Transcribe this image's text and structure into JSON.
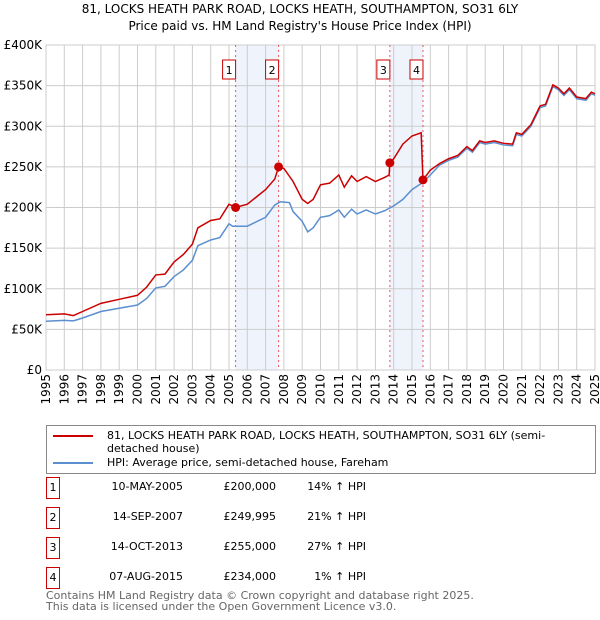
{
  "title": "81, LOCKS HEATH PARK ROAD, LOCKS HEATH, SOUTHAMPTON, SO31 6LY",
  "subtitle": "Price paid vs. HM Land Registry's House Price Index (HPI)",
  "chart_data": {
    "type": "line",
    "xlim": [
      1995,
      2025
    ],
    "ylim": [
      0,
      400000
    ],
    "y_ticks": [
      {
        "v": 0,
        "label": "£0"
      },
      {
        "v": 50000,
        "label": "£50K"
      },
      {
        "v": 100000,
        "label": "£100K"
      },
      {
        "v": 150000,
        "label": "£150K"
      },
      {
        "v": 200000,
        "label": "£200K"
      },
      {
        "v": 250000,
        "label": "£250K"
      },
      {
        "v": 300000,
        "label": "£300K"
      },
      {
        "v": 350000,
        "label": "£350K"
      },
      {
        "v": 400000,
        "label": "£400K"
      }
    ],
    "x_ticks": [
      "1995",
      "1996",
      "1997",
      "1998",
      "1999",
      "2000",
      "2001",
      "2002",
      "2003",
      "2004",
      "2005",
      "2006",
      "2007",
      "2008",
      "2009",
      "2010",
      "2011",
      "2012",
      "2013",
      "2014",
      "2015",
      "2016",
      "2017",
      "2018",
      "2019",
      "2020",
      "2021",
      "2022",
      "2023",
      "2024",
      "2025"
    ],
    "shaded_ranges": [
      [
        2005.36,
        2007.71
      ],
      [
        2013.79,
        2015.6
      ]
    ],
    "series": [
      {
        "name": "81, LOCKS HEATH PARK ROAD, LOCKS HEATH, SOUTHAMPTON, SO31 6LY (semi-detached house)",
        "color": "#cc0000",
        "points": [
          [
            1995,
            68000
          ],
          [
            1996,
            69000
          ],
          [
            1996.5,
            67000
          ],
          [
            1997,
            72000
          ],
          [
            1998,
            82000
          ],
          [
            1999,
            87000
          ],
          [
            2000,
            92000
          ],
          [
            2000.5,
            102000
          ],
          [
            2001,
            117000
          ],
          [
            2001.5,
            118000
          ],
          [
            2002,
            133000
          ],
          [
            2002.5,
            142000
          ],
          [
            2003,
            155000
          ],
          [
            2003.3,
            175000
          ],
          [
            2004,
            184000
          ],
          [
            2004.5,
            186000
          ],
          [
            2005,
            204000
          ],
          [
            2005.36,
            200000
          ],
          [
            2006,
            204000
          ],
          [
            2007,
            222000
          ],
          [
            2007.5,
            235000
          ],
          [
            2007.71,
            250000
          ],
          [
            2008,
            248000
          ],
          [
            2008.5,
            232000
          ],
          [
            2009,
            210000
          ],
          [
            2009.3,
            205000
          ],
          [
            2009.6,
            210000
          ],
          [
            2010,
            228000
          ],
          [
            2010.5,
            230000
          ],
          [
            2011,
            240000
          ],
          [
            2011.3,
            225000
          ],
          [
            2011.7,
            239000
          ],
          [
            2012,
            232000
          ],
          [
            2012.5,
            238000
          ],
          [
            2013,
            232000
          ],
          [
            2013.5,
            237000
          ],
          [
            2013.75,
            240000
          ],
          [
            2013.79,
            255000
          ],
          [
            2014,
            260000
          ],
          [
            2014.5,
            278000
          ],
          [
            2015,
            288000
          ],
          [
            2015.5,
            292000
          ],
          [
            2015.6,
            234000
          ],
          [
            2016,
            246000
          ],
          [
            2016.5,
            254000
          ],
          [
            2017,
            260000
          ],
          [
            2017.5,
            264000
          ],
          [
            2018,
            275000
          ],
          [
            2018.3,
            270000
          ],
          [
            2018.7,
            282000
          ],
          [
            2019,
            280000
          ],
          [
            2019.5,
            282000
          ],
          [
            2020,
            279000
          ],
          [
            2020.5,
            278000
          ],
          [
            2020.7,
            292000
          ],
          [
            2021,
            290000
          ],
          [
            2021.5,
            302000
          ],
          [
            2022,
            325000
          ],
          [
            2022.3,
            327000
          ],
          [
            2022.7,
            351000
          ],
          [
            2023,
            347000
          ],
          [
            2023.3,
            340000
          ],
          [
            2023.6,
            347000
          ],
          [
            2024,
            336000
          ],
          [
            2024.5,
            334000
          ],
          [
            2024.8,
            342000
          ],
          [
            2025,
            340000
          ]
        ]
      },
      {
        "name": "HPI: Average price, semi-detached house, Fareham",
        "color": "#5b8fd0",
        "points": [
          [
            1995,
            60000
          ],
          [
            1996,
            61000
          ],
          [
            1996.5,
            60500
          ],
          [
            1997,
            64000
          ],
          [
            1998,
            72000
          ],
          [
            1999,
            76000
          ],
          [
            2000,
            80000
          ],
          [
            2000.5,
            88000
          ],
          [
            2001,
            101000
          ],
          [
            2001.5,
            103000
          ],
          [
            2002,
            115000
          ],
          [
            2002.5,
            123000
          ],
          [
            2003,
            135000
          ],
          [
            2003.3,
            153000
          ],
          [
            2004,
            160000
          ],
          [
            2004.5,
            163000
          ],
          [
            2005,
            180000
          ],
          [
            2005.2,
            177000
          ],
          [
            2006,
            177000
          ],
          [
            2007,
            188000
          ],
          [
            2007.5,
            203000
          ],
          [
            2007.8,
            207000
          ],
          [
            2008.3,
            206000
          ],
          [
            2008.5,
            195000
          ],
          [
            2009,
            183000
          ],
          [
            2009.3,
            170000
          ],
          [
            2009.6,
            175000
          ],
          [
            2010,
            188000
          ],
          [
            2010.5,
            190000
          ],
          [
            2011,
            197000
          ],
          [
            2011.3,
            188000
          ],
          [
            2011.7,
            198000
          ],
          [
            2012,
            192000
          ],
          [
            2012.5,
            197000
          ],
          [
            2013,
            192000
          ],
          [
            2013.5,
            196000
          ],
          [
            2014,
            202000
          ],
          [
            2014.5,
            210000
          ],
          [
            2015,
            222000
          ],
          [
            2015.6,
            231000
          ],
          [
            2016,
            240000
          ],
          [
            2016.5,
            252000
          ],
          [
            2017,
            258000
          ],
          [
            2017.5,
            262000
          ],
          [
            2018,
            273000
          ],
          [
            2018.3,
            268000
          ],
          [
            2018.7,
            280000
          ],
          [
            2019,
            278000
          ],
          [
            2019.5,
            280000
          ],
          [
            2020,
            277000
          ],
          [
            2020.5,
            276000
          ],
          [
            2020.7,
            290000
          ],
          [
            2021,
            288000
          ],
          [
            2021.5,
            300000
          ],
          [
            2022,
            323000
          ],
          [
            2022.3,
            325000
          ],
          [
            2022.7,
            349000
          ],
          [
            2023,
            345000
          ],
          [
            2023.3,
            338000
          ],
          [
            2023.6,
            345000
          ],
          [
            2024,
            334000
          ],
          [
            2024.5,
            332000
          ],
          [
            2024.8,
            340000
          ],
          [
            2025,
            338000
          ]
        ]
      }
    ],
    "sales": [
      {
        "label": "1",
        "x": 2005.36,
        "y": 200000
      },
      {
        "label": "2",
        "x": 2007.71,
        "y": 249995
      },
      {
        "label": "3",
        "x": 2013.79,
        "y": 255000
      },
      {
        "label": "4",
        "x": 2015.6,
        "y": 234000
      }
    ]
  },
  "legend": {
    "property": "81, LOCKS HEATH PARK ROAD, LOCKS HEATH, SOUTHAMPTON, SO31 6LY (semi-detached house)",
    "hpi": "HPI: Average price, semi-detached house, Fareham"
  },
  "transactions": [
    {
      "num": "1",
      "date": "10-MAY-2005",
      "price": "£200,000",
      "hpi": "14% ↑ HPI"
    },
    {
      "num": "2",
      "date": "14-SEP-2007",
      "price": "£249,995",
      "hpi": "21% ↑ HPI"
    },
    {
      "num": "3",
      "date": "14-OCT-2013",
      "price": "£255,000",
      "hpi": "27% ↑ HPI"
    },
    {
      "num": "4",
      "date": "07-AUG-2015",
      "price": "£234,000",
      "hpi": "1% ↑ HPI"
    }
  ],
  "footer": {
    "line1": "Contains HM Land Registry data © Crown copyright and database right 2025.",
    "line2": "This data is licensed under the Open Government Licence v3.0."
  }
}
